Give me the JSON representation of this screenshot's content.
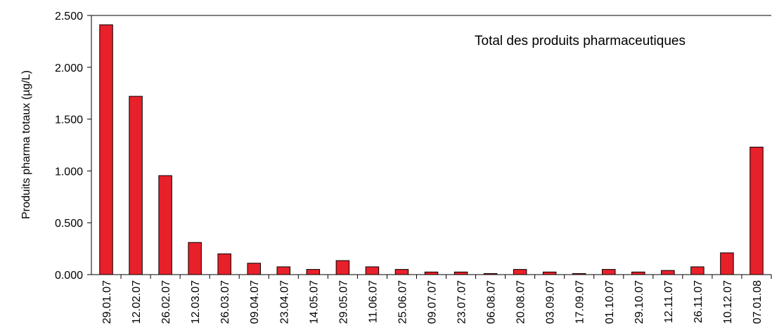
{
  "chart_data": {
    "type": "bar",
    "ylabel": "Produits pharma totaux  (µg/L)",
    "annotation": "Total des produits pharmaceutiques",
    "categories": [
      "29.01.07",
      "12.02.07",
      "26.02.07",
      "12.03.07",
      "26.03.07",
      "09.04.07",
      "23.04.07",
      "14.05.07",
      "29.05.07",
      "11.06.07",
      "25.06.07",
      "09.07.07",
      "23.07.07",
      "06.08.07",
      "20.08.07",
      "03.09.07",
      "17.09.07",
      "01.10.07",
      "29.10.07",
      "12.11.07",
      "26.11.07",
      "10.12.07",
      "07.01.08"
    ],
    "values": [
      2.41,
      1.72,
      0.955,
      0.31,
      0.2,
      0.11,
      0.075,
      0.05,
      0.135,
      0.075,
      0.05,
      0.025,
      0.025,
      0.01,
      0.05,
      0.025,
      0.01,
      0.05,
      0.025,
      0.04,
      0.075,
      0.21,
      1.23
    ],
    "color": "#e8202a",
    "ylim": [
      0,
      2.5
    ],
    "yticks": [
      {
        "value": 0,
        "label": "0.000"
      },
      {
        "value": 0.5,
        "label": "0.500"
      },
      {
        "value": 1,
        "label": "1.000"
      },
      {
        "value": 1.5,
        "label": "1.500"
      },
      {
        "value": 2,
        "label": "2.000"
      },
      {
        "value": 2.5,
        "label": "2.500"
      }
    ]
  }
}
